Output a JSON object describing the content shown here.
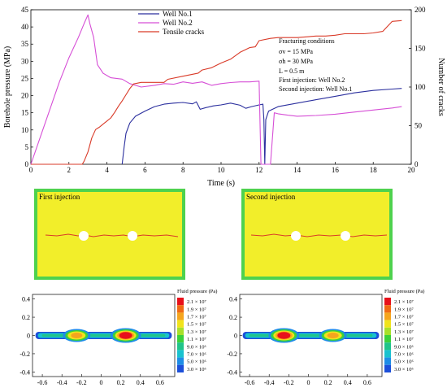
{
  "chart_data": [
    {
      "type": "line",
      "xlabel": "Time (s)",
      "ylabel_left": "Borehole pressure (MPa)",
      "ylabel_right": "Number of cracks",
      "xlim": [
        0,
        20
      ],
      "ylim_left": [
        0,
        45
      ],
      "ylim_right": [
        0,
        200
      ],
      "x_ticks": [
        "0",
        "2",
        "4",
        "6",
        "8",
        "10",
        "12",
        "14",
        "16",
        "18",
        "20"
      ],
      "y_left_ticks": [
        "0",
        "5",
        "10",
        "15",
        "20",
        "25",
        "30",
        "35",
        "40",
        "45"
      ],
      "y_right_ticks": [
        "0",
        "50",
        "100",
        "150",
        "200"
      ],
      "legend_position": "top-center",
      "series": [
        {
          "name": "Well No.1",
          "axis": "left",
          "color": "#2b2f9e",
          "points": [
            [
              4.8,
              0
            ],
            [
              4.9,
              5
            ],
            [
              5.0,
              9
            ],
            [
              5.2,
              12
            ],
            [
              5.5,
              14
            ],
            [
              6.0,
              15.5
            ],
            [
              6.5,
              16.8
            ],
            [
              7.0,
              17.5
            ],
            [
              7.5,
              17.8
            ],
            [
              8.0,
              18
            ],
            [
              8.5,
              17.6
            ],
            [
              8.7,
              18.2
            ],
            [
              8.9,
              16
            ],
            [
              9.2,
              16.5
            ],
            [
              9.6,
              17
            ],
            [
              10.0,
              17.3
            ],
            [
              10.5,
              17.8
            ],
            [
              11.0,
              17.2
            ],
            [
              11.3,
              16.3
            ],
            [
              11.6,
              16.8
            ],
            [
              12.0,
              17.3
            ],
            [
              12.2,
              17.5
            ],
            [
              12.25,
              13
            ],
            [
              12.3,
              0
            ],
            [
              12.35,
              13
            ],
            [
              12.5,
              15.5
            ],
            [
              13.0,
              16.8
            ],
            [
              14.0,
              17.8
            ],
            [
              15.0,
              18.8
            ],
            [
              16.0,
              19.8
            ],
            [
              17.0,
              20.8
            ],
            [
              18.0,
              21.5
            ],
            [
              19.0,
              21.9
            ],
            [
              19.5,
              22.1
            ]
          ]
        },
        {
          "name": "Well No.2",
          "axis": "left",
          "color": "#d64fd6",
          "points": [
            [
              0,
              0
            ],
            [
              0.5,
              8
            ],
            [
              1.0,
              16
            ],
            [
              1.5,
              24
            ],
            [
              2.0,
              31
            ],
            [
              2.5,
              37
            ],
            [
              2.8,
              41
            ],
            [
              3.0,
              43.5
            ],
            [
              3.1,
              41
            ],
            [
              3.3,
              37
            ],
            [
              3.5,
              29
            ],
            [
              3.8,
              26.5
            ],
            [
              4.2,
              25.2
            ],
            [
              4.8,
              24.8
            ],
            [
              5.2,
              23.5
            ],
            [
              5.8,
              22.5
            ],
            [
              6.5,
              23
            ],
            [
              7.0,
              23.5
            ],
            [
              7.5,
              23.3
            ],
            [
              8.0,
              24
            ],
            [
              8.5,
              23.6
            ],
            [
              9.0,
              24
            ],
            [
              9.5,
              23
            ],
            [
              10.0,
              23.5
            ],
            [
              10.5,
              23.8
            ],
            [
              11.0,
              24
            ],
            [
              11.5,
              24
            ],
            [
              12.0,
              24.2
            ],
            [
              12.1,
              0
            ],
            [
              12.6,
              0
            ],
            [
              12.8,
              15
            ],
            [
              13.0,
              14.7
            ],
            [
              13.5,
              14.3
            ],
            [
              14.0,
              14
            ],
            [
              15.0,
              14.2
            ],
            [
              16.0,
              14.6
            ],
            [
              17.0,
              15.2
            ],
            [
              18.0,
              15.8
            ],
            [
              19.0,
              16.4
            ],
            [
              19.5,
              16.8
            ]
          ]
        },
        {
          "name": "Tensile cracks",
          "axis": "right",
          "color": "#d93a28",
          "points": [
            [
              0,
              0
            ],
            [
              2.7,
              0
            ],
            [
              2.8,
              4
            ],
            [
              3.0,
              16
            ],
            [
              3.2,
              34
            ],
            [
              3.4,
              45
            ],
            [
              3.6,
              48
            ],
            [
              3.8,
              52
            ],
            [
              4.0,
              56
            ],
            [
              4.2,
              60
            ],
            [
              4.4,
              67
            ],
            [
              4.6,
              75
            ],
            [
              4.8,
              82
            ],
            [
              5.0,
              90
            ],
            [
              5.2,
              98
            ],
            [
              5.4,
              104
            ],
            [
              5.8,
              106
            ],
            [
              6.5,
              106
            ],
            [
              7.0,
              106
            ],
            [
              7.2,
              110
            ],
            [
              8.0,
              114
            ],
            [
              8.8,
              118
            ],
            [
              9.0,
              122
            ],
            [
              9.5,
              125
            ],
            [
              10.0,
              131
            ],
            [
              10.5,
              136
            ],
            [
              11.0,
              145
            ],
            [
              11.5,
              151
            ],
            [
              11.8,
              152
            ],
            [
              12.0,
              160
            ],
            [
              12.6,
              163
            ],
            [
              13.0,
              164
            ],
            [
              13.5,
              164
            ],
            [
              14.0,
              164
            ],
            [
              14.5,
              165
            ],
            [
              15.0,
              166
            ],
            [
              15.5,
              166
            ],
            [
              16.0,
              167
            ],
            [
              16.5,
              169
            ],
            [
              17.0,
              169
            ],
            [
              17.5,
              169
            ],
            [
              18.0,
              170
            ],
            [
              18.5,
              172
            ],
            [
              19.0,
              185
            ],
            [
              19.5,
              186
            ]
          ]
        }
      ],
      "annotations": [
        "Fracturing conditions",
        "σv = 15 MPa",
        "σh = 30 MPa",
        "L = 0.5 m",
        "First injection: Well No.2",
        "Second injection: Well No.1"
      ]
    },
    {
      "type": "image",
      "title": "First injection",
      "colors": {
        "frame": "#4ed24e",
        "fill": "#f2ee2a",
        "crack": "#d93a28"
      }
    },
    {
      "type": "image",
      "title": "Second injection",
      "colors": {
        "frame": "#4ed24e",
        "fill": "#f2ee2a",
        "crack": "#d93a28"
      }
    },
    {
      "type": "heatmap",
      "panel": "first",
      "xlim": [
        -0.7,
        0.75
      ],
      "ylim": [
        -0.45,
        0.45
      ],
      "x_ticks": [
        "-0.6",
        "-0.4",
        "-0.2",
        "0",
        "0.2",
        "0.4",
        "0.6"
      ],
      "y_ticks": [
        "0.4",
        "0.2",
        "0",
        "-0.2",
        "-0.4"
      ],
      "hot_spot": "right"
    },
    {
      "type": "heatmap",
      "panel": "second",
      "xlim": [
        -0.7,
        0.75
      ],
      "ylim": [
        -0.45,
        0.45
      ],
      "x_ticks": [
        "-0.6",
        "-0.4",
        "-0.2",
        "0",
        "0.2",
        "0.4",
        "0.6"
      ],
      "y_ticks": [
        "0.4",
        "0.2",
        "0",
        "-0.2",
        "-0.4"
      ],
      "hot_spot": "left"
    }
  ],
  "colorbar": {
    "title": "Fluid pressure (Pa)",
    "levels": [
      {
        "label": "2.1 × 10⁷",
        "color": "#e8101a"
      },
      {
        "label": "1.9 × 10⁷",
        "color": "#f06a14"
      },
      {
        "label": "1.7 × 10⁷",
        "color": "#f5a51e"
      },
      {
        "label": "1.5 × 10⁷",
        "color": "#f1e31c"
      },
      {
        "label": "1.3 × 10⁷",
        "color": "#a8e02a"
      },
      {
        "label": "1.1 × 10⁷",
        "color": "#3bd13b"
      },
      {
        "label": "9.0 × 10⁶",
        "color": "#20c48a"
      },
      {
        "label": "7.0 × 10⁶",
        "color": "#19c2cf"
      },
      {
        "label": "5.0 × 10⁶",
        "color": "#1e8de6"
      },
      {
        "label": "3.0 × 10⁶",
        "color": "#1c4fd9"
      }
    ]
  }
}
